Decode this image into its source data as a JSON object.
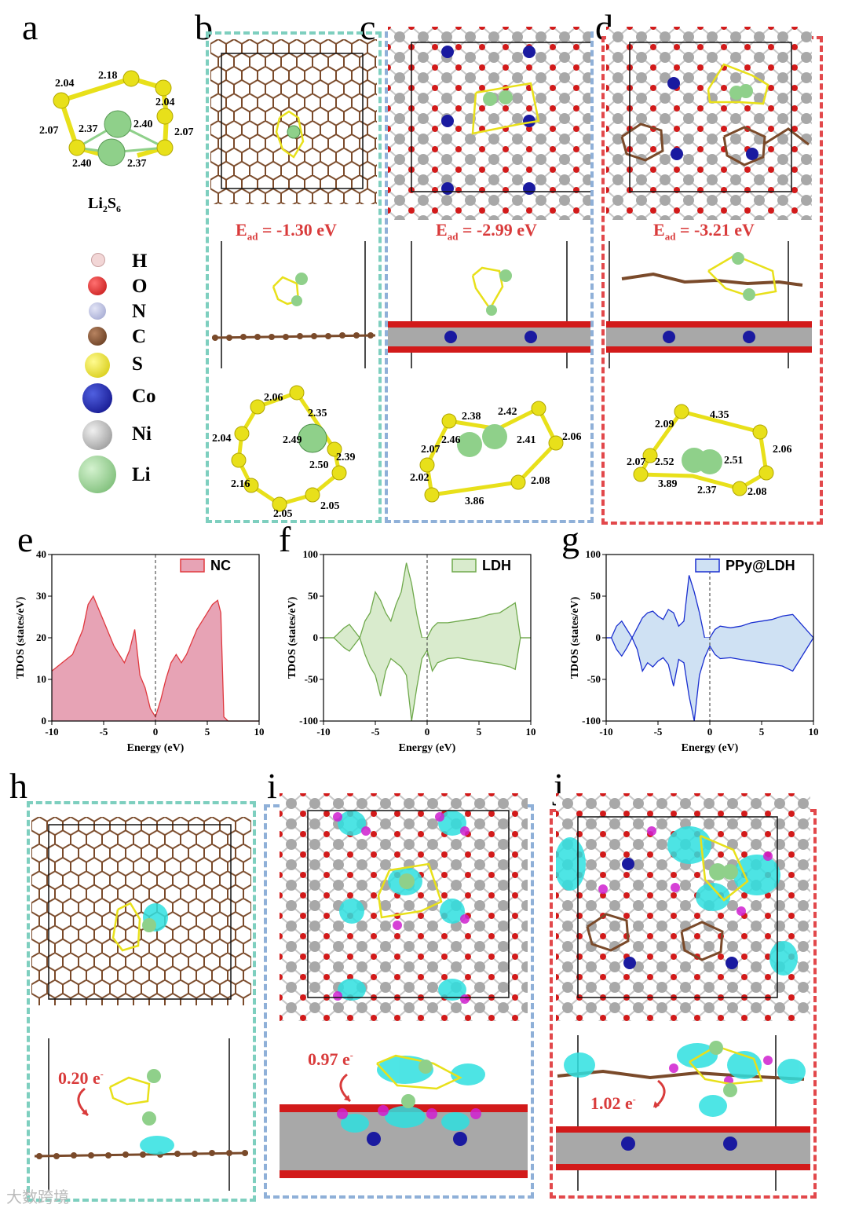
{
  "panels": {
    "a": {
      "label": "a",
      "formula_main": "Li",
      "formula_sub1": "2",
      "formula_mid": "S",
      "formula_sub2": "6",
      "bonds": [
        "2.04",
        "2.18",
        "2.04",
        "2.07",
        "2.37",
        "2.40",
        "2.07",
        "2.40",
        "2.37"
      ]
    },
    "b": {
      "label": "b",
      "ead_main": "E",
      "ead_sub": "ad",
      "ead_value": " = -1.30 eV",
      "bonds": [
        "2.06",
        "2.35",
        "2.04",
        "2.49",
        "2.39",
        "2.50",
        "2.16",
        "2.05",
        "2.05"
      ]
    },
    "c": {
      "label": "c",
      "ead_main": "E",
      "ead_sub": "ad",
      "ead_value": " = -2.99 eV",
      "bonds": [
        "2.38",
        "2.42",
        "2.07",
        "2.46",
        "2.41",
        "2.06",
        "2.02",
        "2.08",
        "3.86"
      ]
    },
    "d": {
      "label": "d",
      "ead_main": "E",
      "ead_sub": "ad",
      "ead_value": " = -3.21 eV",
      "bonds": [
        "2.09",
        "4.35",
        "2.07",
        "2.06",
        "2.52",
        "2.51",
        "3.89",
        "2.37",
        "2.08"
      ]
    },
    "e": {
      "label": "e"
    },
    "f": {
      "label": "f"
    },
    "g": {
      "label": "g"
    },
    "h": {
      "label": "h",
      "charge_main": "0.20 e",
      "charge_sup": "-"
    },
    "i": {
      "label": "i",
      "charge_main": "0.97 e",
      "charge_sup": "-"
    },
    "j": {
      "label": "j",
      "charge_main": "1.02 e",
      "charge_sup": "-"
    }
  },
  "legend": [
    {
      "symbol": "H",
      "color": "#f2d6d6"
    },
    {
      "symbol": "O",
      "color": "#d21a1a"
    },
    {
      "symbol": "N",
      "color": "#b4b8dc"
    },
    {
      "symbol": "C",
      "color": "#7a4a2a"
    },
    {
      "symbol": "S",
      "color": "#e8e01a"
    },
    {
      "symbol": "Co",
      "color": "#1a1aa0"
    },
    {
      "symbol": "Ni",
      "color": "#a8a8a8"
    },
    {
      "symbol": "Li",
      "color": "#8fd08a"
    }
  ],
  "chart_data": [
    {
      "type": "area",
      "name": "NC",
      "xlabel": "Energy (eV)",
      "ylabel": "TDOS (states/eV)",
      "xlim": [
        -10,
        10
      ],
      "ylim": [
        0,
        40
      ],
      "xticks": [
        "-10",
        "-5",
        "0",
        "5",
        "10"
      ],
      "yticks": [
        "0",
        "10",
        "20",
        "30",
        "40"
      ],
      "legend": "NC",
      "color": "#e0383e",
      "fill": "#e7a3b5",
      "x": [
        -10,
        -9,
        -8,
        -7,
        -6.5,
        -6,
        -5.5,
        -5,
        -4.5,
        -4,
        -3,
        -2.5,
        -2,
        -1.5,
        -1,
        -0.5,
        0,
        0.5,
        1,
        1.5,
        2,
        2.5,
        3,
        3.5,
        4,
        4.5,
        5,
        5.5,
        6,
        6.3,
        6.6,
        7,
        10
      ],
      "y": [
        12,
        14,
        16,
        22,
        28,
        30,
        27,
        24,
        21,
        18,
        14,
        17,
        22,
        11,
        8,
        3,
        1,
        5,
        10,
        14,
        16,
        14,
        16,
        19,
        22,
        24,
        26,
        28,
        29,
        26,
        1,
        0,
        0
      ]
    },
    {
      "type": "area",
      "name": "LDH",
      "xlabel": "Energy (eV)",
      "ylabel": "TDOS (states/eV)",
      "xlim": [
        -10,
        10
      ],
      "ylim": [
        -100,
        100
      ],
      "xticks": [
        "-10",
        "-5",
        "0",
        "5",
        "10"
      ],
      "yticks": [
        "-100",
        "-50",
        "0",
        "50",
        "100"
      ],
      "legend": "LDH",
      "color": "#6fa94c",
      "fill": "#d9ebcd",
      "x_up": [
        -10,
        -9,
        -8,
        -7.5,
        -7,
        -6.5,
        -6,
        -5.5,
        -5,
        -4.5,
        -4,
        -3.5,
        -3,
        -2.5,
        -2,
        -1.5,
        -1,
        -0.5,
        0,
        0.5,
        1,
        2,
        3,
        4,
        5,
        6,
        7,
        8,
        8.5,
        9,
        10
      ],
      "y_up": [
        0,
        0,
        12,
        16,
        8,
        0,
        20,
        30,
        55,
        45,
        30,
        20,
        40,
        55,
        90,
        65,
        28,
        0,
        0,
        12,
        18,
        18,
        20,
        22,
        24,
        28,
        30,
        38,
        42,
        0,
        0
      ],
      "x_dn": [
        -10,
        -9,
        -8,
        -7.5,
        -7,
        -6.5,
        -6,
        -5.5,
        -5,
        -4.5,
        -4,
        -3.5,
        -3,
        -2.5,
        -2,
        -1.5,
        -1,
        -0.5,
        0,
        0.5,
        1,
        2,
        3,
        4,
        5,
        6,
        7,
        8,
        8.5,
        9,
        10
      ],
      "y_dn": [
        0,
        0,
        -12,
        -16,
        -8,
        0,
        -20,
        -35,
        -45,
        -70,
        -40,
        -25,
        -30,
        -35,
        -45,
        -100,
        -60,
        -25,
        -15,
        -40,
        -30,
        -25,
        -24,
        -26,
        -28,
        -30,
        -32,
        -35,
        -38,
        0,
        0
      ]
    },
    {
      "type": "area",
      "name": "PPy@LDH",
      "xlabel": "Energy (eV)",
      "ylabel": "TDOS (states/eV)",
      "xlim": [
        -10,
        10
      ],
      "ylim": [
        -100,
        100
      ],
      "xticks": [
        "-10",
        "-5",
        "0",
        "5",
        "10"
      ],
      "yticks": [
        "-100",
        "-50",
        "0",
        "50",
        "100"
      ],
      "legend": "PPy@LDH",
      "color": "#1a2fd0",
      "fill": "#cfe1f3",
      "x_up": [
        -10,
        -9.5,
        -9,
        -8.5,
        -8,
        -7.5,
        -7,
        -6.5,
        -6,
        -5.5,
        -5,
        -4.5,
        -4,
        -3.5,
        -3,
        -2.5,
        -2,
        -1.5,
        -1,
        -0.5,
        0,
        0.5,
        1,
        2,
        3,
        4,
        5,
        6,
        7,
        8,
        10
      ],
      "y_up": [
        0,
        0,
        14,
        20,
        10,
        0,
        12,
        24,
        30,
        32,
        26,
        22,
        34,
        30,
        14,
        20,
        75,
        55,
        30,
        0,
        0,
        10,
        14,
        12,
        14,
        18,
        20,
        22,
        26,
        28,
        0
      ],
      "x_dn": [
        -10,
        -9.5,
        -9,
        -8.5,
        -8,
        -7.5,
        -7,
        -6.5,
        -6,
        -5.5,
        -5,
        -4.5,
        -4,
        -3.5,
        -3,
        -2.5,
        -2,
        -1.5,
        -1,
        -0.5,
        0,
        0.5,
        1,
        2,
        3,
        4,
        5,
        6,
        7,
        8,
        10
      ],
      "y_dn": [
        0,
        0,
        -14,
        -22,
        -12,
        0,
        -14,
        -40,
        -30,
        -35,
        -28,
        -24,
        -32,
        -58,
        -26,
        -30,
        -70,
        -100,
        -45,
        -24,
        -10,
        -20,
        -25,
        -24,
        -26,
        -28,
        -30,
        -32,
        -34,
        -40,
        0
      ]
    }
  ],
  "watermark": "大数跨境"
}
